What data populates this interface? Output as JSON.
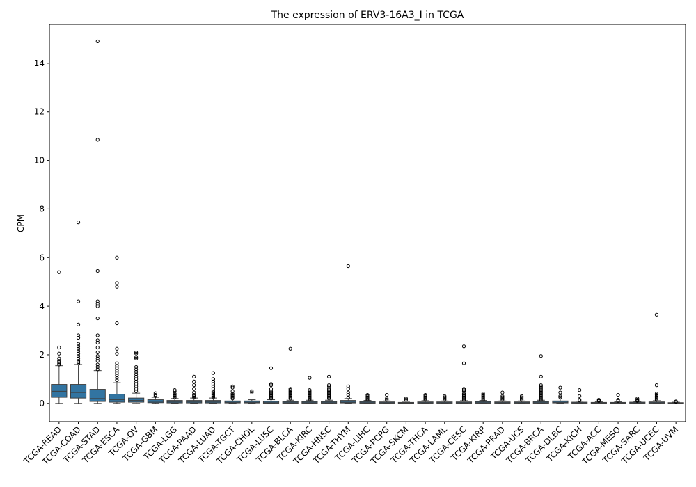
{
  "chart_data": {
    "type": "box",
    "title": "The expression of ERV3-16A3_I in TCGA",
    "xlabel": "",
    "ylabel": "CPM",
    "ylim": [
      -0.75,
      15.6
    ],
    "yticks": [
      0,
      2,
      4,
      6,
      8,
      10,
      12,
      14
    ],
    "box_color": "#3274a1",
    "categories": [
      "TCGA-READ",
      "TCGA-COAD",
      "TCGA-STAD",
      "TCGA-ESCA",
      "TCGA-OV",
      "TCGA-GBM",
      "TCGA-LGG",
      "TCGA-PAAD",
      "TCGA-LUAD",
      "TCGA-TGCT",
      "TCGA-CHOL",
      "TCGA-LUSC",
      "TCGA-BLCA",
      "TCGA-KIRC",
      "TCGA-HNSC",
      "TCGA-THYM",
      "TCGA-LIHC",
      "TCGA-PCPG",
      "TCGA-SKCM",
      "TCGA-THCA",
      "TCGA-LAML",
      "TCGA-CESC",
      "TCGA-KIRP",
      "TCGA-PRAD",
      "TCGA-UCS",
      "TCGA-BRCA",
      "TCGA-DLBC",
      "TCGA-KICH",
      "TCGA-ACC",
      "TCGA-MESO",
      "TCGA-SARC",
      "TCGA-UCEC",
      "TCGA-UVM"
    ],
    "boxes": [
      {
        "min": 0.0,
        "q1": 0.25,
        "median": 0.5,
        "q3": 0.78,
        "max": 1.55,
        "outliers": [
          5.4,
          2.3,
          2.05,
          1.85,
          1.75,
          1.7,
          1.65,
          1.6
        ]
      },
      {
        "min": 0.0,
        "q1": 0.22,
        "median": 0.45,
        "q3": 0.78,
        "max": 1.6,
        "outliers": [
          7.45,
          4.2,
          3.25,
          2.8,
          2.7,
          2.45,
          2.35,
          2.25,
          2.15,
          2.05,
          1.95,
          1.85,
          1.75,
          1.7,
          1.65
        ]
      },
      {
        "min": 0.0,
        "q1": 0.08,
        "median": 0.2,
        "q3": 0.58,
        "max": 1.35,
        "outliers": [
          14.9,
          10.85,
          5.45,
          4.2,
          4.1,
          4.0,
          3.5,
          2.8,
          2.6,
          2.5,
          2.3,
          2.1,
          1.95,
          1.85,
          1.75,
          1.6,
          1.5,
          1.4
        ]
      },
      {
        "min": 0.0,
        "q1": 0.05,
        "median": 0.15,
        "q3": 0.38,
        "max": 0.85,
        "outliers": [
          6.0,
          4.95,
          4.8,
          3.3,
          2.25,
          2.05,
          1.65,
          1.55,
          1.45,
          1.35,
          1.25,
          1.15,
          1.05,
          0.95
        ]
      },
      {
        "min": 0.0,
        "q1": 0.05,
        "median": 0.12,
        "q3": 0.22,
        "max": 0.42,
        "outliers": [
          2.1,
          2.05,
          1.9,
          1.85,
          1.5,
          1.4,
          1.3,
          1.2,
          1.1,
          1.0,
          0.9,
          0.8,
          0.7,
          0.6,
          0.5
        ]
      },
      {
        "min": 0.0,
        "q1": 0.03,
        "median": 0.08,
        "q3": 0.15,
        "max": 0.25,
        "outliers": [
          0.42,
          0.35,
          0.3
        ]
      },
      {
        "min": 0.0,
        "q1": 0.02,
        "median": 0.06,
        "q3": 0.12,
        "max": 0.2,
        "outliers": [
          0.55,
          0.5,
          0.4,
          0.35,
          0.3,
          0.25
        ]
      },
      {
        "min": 0.0,
        "q1": 0.02,
        "median": 0.06,
        "q3": 0.12,
        "max": 0.22,
        "outliers": [
          1.1,
          0.9,
          0.75,
          0.6,
          0.45,
          0.35,
          0.3,
          0.25
        ]
      },
      {
        "min": 0.0,
        "q1": 0.02,
        "median": 0.06,
        "q3": 0.12,
        "max": 0.22,
        "outliers": [
          1.25,
          1.0,
          0.9,
          0.8,
          0.7,
          0.6,
          0.5,
          0.45,
          0.4,
          0.35,
          0.3,
          0.25
        ]
      },
      {
        "min": 0.0,
        "q1": 0.02,
        "median": 0.05,
        "q3": 0.1,
        "max": 0.18,
        "outliers": [
          0.7,
          0.65,
          0.5,
          0.4,
          0.35,
          0.3,
          0.25,
          0.2
        ]
      },
      {
        "min": 0.0,
        "q1": 0.02,
        "median": 0.05,
        "q3": 0.1,
        "max": 0.15,
        "outliers": [
          0.5,
          0.45
        ]
      },
      {
        "min": 0.0,
        "q1": 0.01,
        "median": 0.03,
        "q3": 0.08,
        "max": 0.15,
        "outliers": [
          1.45,
          0.8,
          0.75,
          0.6,
          0.5,
          0.45,
          0.4,
          0.35,
          0.3,
          0.25,
          0.2
        ]
      },
      {
        "min": 0.0,
        "q1": 0.01,
        "median": 0.03,
        "q3": 0.07,
        "max": 0.13,
        "outliers": [
          2.25,
          0.6,
          0.55,
          0.5,
          0.45,
          0.4,
          0.35,
          0.3,
          0.25,
          0.2
        ]
      },
      {
        "min": 0.0,
        "q1": 0.01,
        "median": 0.03,
        "q3": 0.07,
        "max": 0.13,
        "outliers": [
          1.05,
          0.55,
          0.5,
          0.45,
          0.4,
          0.35,
          0.3,
          0.25,
          0.2,
          0.15
        ]
      },
      {
        "min": 0.0,
        "q1": 0.01,
        "median": 0.03,
        "q3": 0.07,
        "max": 0.13,
        "outliers": [
          1.1,
          0.75,
          0.7,
          0.6,
          0.55,
          0.5,
          0.45,
          0.4,
          0.35,
          0.3,
          0.25,
          0.2
        ]
      },
      {
        "min": 0.0,
        "q1": 0.02,
        "median": 0.05,
        "q3": 0.12,
        "max": 0.2,
        "outliers": [
          5.65,
          0.7,
          0.6,
          0.45,
          0.35,
          0.25
        ]
      },
      {
        "min": 0.0,
        "q1": 0.01,
        "median": 0.03,
        "q3": 0.07,
        "max": 0.12,
        "outliers": [
          0.35,
          0.3,
          0.25,
          0.2,
          0.15
        ]
      },
      {
        "min": 0.0,
        "q1": 0.01,
        "median": 0.03,
        "q3": 0.06,
        "max": 0.1,
        "outliers": [
          0.35,
          0.2,
          0.15
        ]
      },
      {
        "min": 0.0,
        "q1": 0.01,
        "median": 0.02,
        "q3": 0.04,
        "max": 0.08,
        "outliers": [
          0.2,
          0.15
        ]
      },
      {
        "min": 0.0,
        "q1": 0.01,
        "median": 0.03,
        "q3": 0.06,
        "max": 0.11,
        "outliers": [
          0.35,
          0.3,
          0.25,
          0.2,
          0.15
        ]
      },
      {
        "min": 0.0,
        "q1": 0.01,
        "median": 0.03,
        "q3": 0.06,
        "max": 0.1,
        "outliers": [
          0.3,
          0.25,
          0.2,
          0.15
        ]
      },
      {
        "min": 0.0,
        "q1": 0.01,
        "median": 0.03,
        "q3": 0.06,
        "max": 0.11,
        "outliers": [
          2.35,
          1.65,
          0.6,
          0.55,
          0.5,
          0.4,
          0.35,
          0.3,
          0.25,
          0.2,
          0.15
        ]
      },
      {
        "min": 0.0,
        "q1": 0.01,
        "median": 0.03,
        "q3": 0.07,
        "max": 0.12,
        "outliers": [
          0.4,
          0.35,
          0.3,
          0.25,
          0.2,
          0.15
        ]
      },
      {
        "min": 0.0,
        "q1": 0.01,
        "median": 0.03,
        "q3": 0.06,
        "max": 0.1,
        "outliers": [
          0.45,
          0.3,
          0.25,
          0.2,
          0.15
        ]
      },
      {
        "min": 0.0,
        "q1": 0.01,
        "median": 0.03,
        "q3": 0.06,
        "max": 0.1,
        "outliers": [
          0.3,
          0.25,
          0.2,
          0.15
        ]
      },
      {
        "min": 0.0,
        "q1": 0.01,
        "median": 0.03,
        "q3": 0.07,
        "max": 0.13,
        "outliers": [
          1.95,
          1.1,
          0.75,
          0.7,
          0.65,
          0.6,
          0.55,
          0.5,
          0.45,
          0.4,
          0.35,
          0.3,
          0.25,
          0.2,
          0.15
        ]
      },
      {
        "min": 0.0,
        "q1": 0.02,
        "median": 0.05,
        "q3": 0.1,
        "max": 0.18,
        "outliers": [
          0.65,
          0.45,
          0.3,
          0.25
        ]
      },
      {
        "min": 0.0,
        "q1": 0.01,
        "median": 0.02,
        "q3": 0.05,
        "max": 0.09,
        "outliers": [
          0.55,
          0.3,
          0.15,
          0.12
        ]
      },
      {
        "min": 0.0,
        "q1": 0.01,
        "median": 0.02,
        "q3": 0.04,
        "max": 0.07,
        "outliers": [
          0.15,
          0.12,
          0.1
        ]
      },
      {
        "min": 0.0,
        "q1": 0.01,
        "median": 0.02,
        "q3": 0.04,
        "max": 0.07,
        "outliers": [
          0.35,
          0.15,
          0.1
        ]
      },
      {
        "min": 0.0,
        "q1": 0.01,
        "median": 0.02,
        "q3": 0.05,
        "max": 0.08,
        "outliers": [
          0.2,
          0.15,
          0.12,
          0.1
        ]
      },
      {
        "min": 0.0,
        "q1": 0.01,
        "median": 0.03,
        "q3": 0.06,
        "max": 0.11,
        "outliers": [
          3.65,
          0.75,
          0.4,
          0.35,
          0.3,
          0.25,
          0.2,
          0.15
        ]
      },
      {
        "min": 0.0,
        "q1": 0.0,
        "median": 0.01,
        "q3": 0.03,
        "max": 0.05,
        "outliers": [
          0.08,
          0.07
        ]
      }
    ]
  }
}
